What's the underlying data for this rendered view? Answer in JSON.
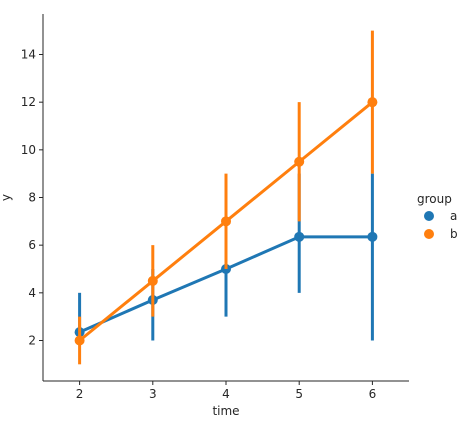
{
  "chart_data": {
    "type": "line",
    "title": "",
    "xlabel": "time",
    "ylabel": "y",
    "x": [
      2,
      3,
      4,
      5,
      6
    ],
    "xlim": [
      1.5,
      6.5
    ],
    "ylim": [
      0.3,
      15.7
    ],
    "yticks": [
      2,
      4,
      6,
      8,
      10,
      12,
      14
    ],
    "grid": false,
    "legend": {
      "title": "group",
      "placement": "right"
    },
    "series": [
      {
        "name": "a",
        "color": "#1f77b4",
        "values": [
          2.35,
          3.7,
          5.0,
          6.35,
          6.35
        ],
        "ci_low": [
          2.0,
          2.0,
          3.0,
          4.0,
          2.0
        ],
        "ci_high": [
          4.0,
          5.0,
          7.0,
          9.0,
          9.0
        ]
      },
      {
        "name": "b",
        "color": "#ff7f0e",
        "values": [
          2.0,
          4.5,
          7.0,
          9.5,
          12.0
        ],
        "ci_low": [
          1.0,
          3.0,
          5.0,
          7.0,
          9.0
        ],
        "ci_high": [
          3.0,
          6.0,
          9.0,
          12.0,
          15.0
        ]
      }
    ]
  }
}
